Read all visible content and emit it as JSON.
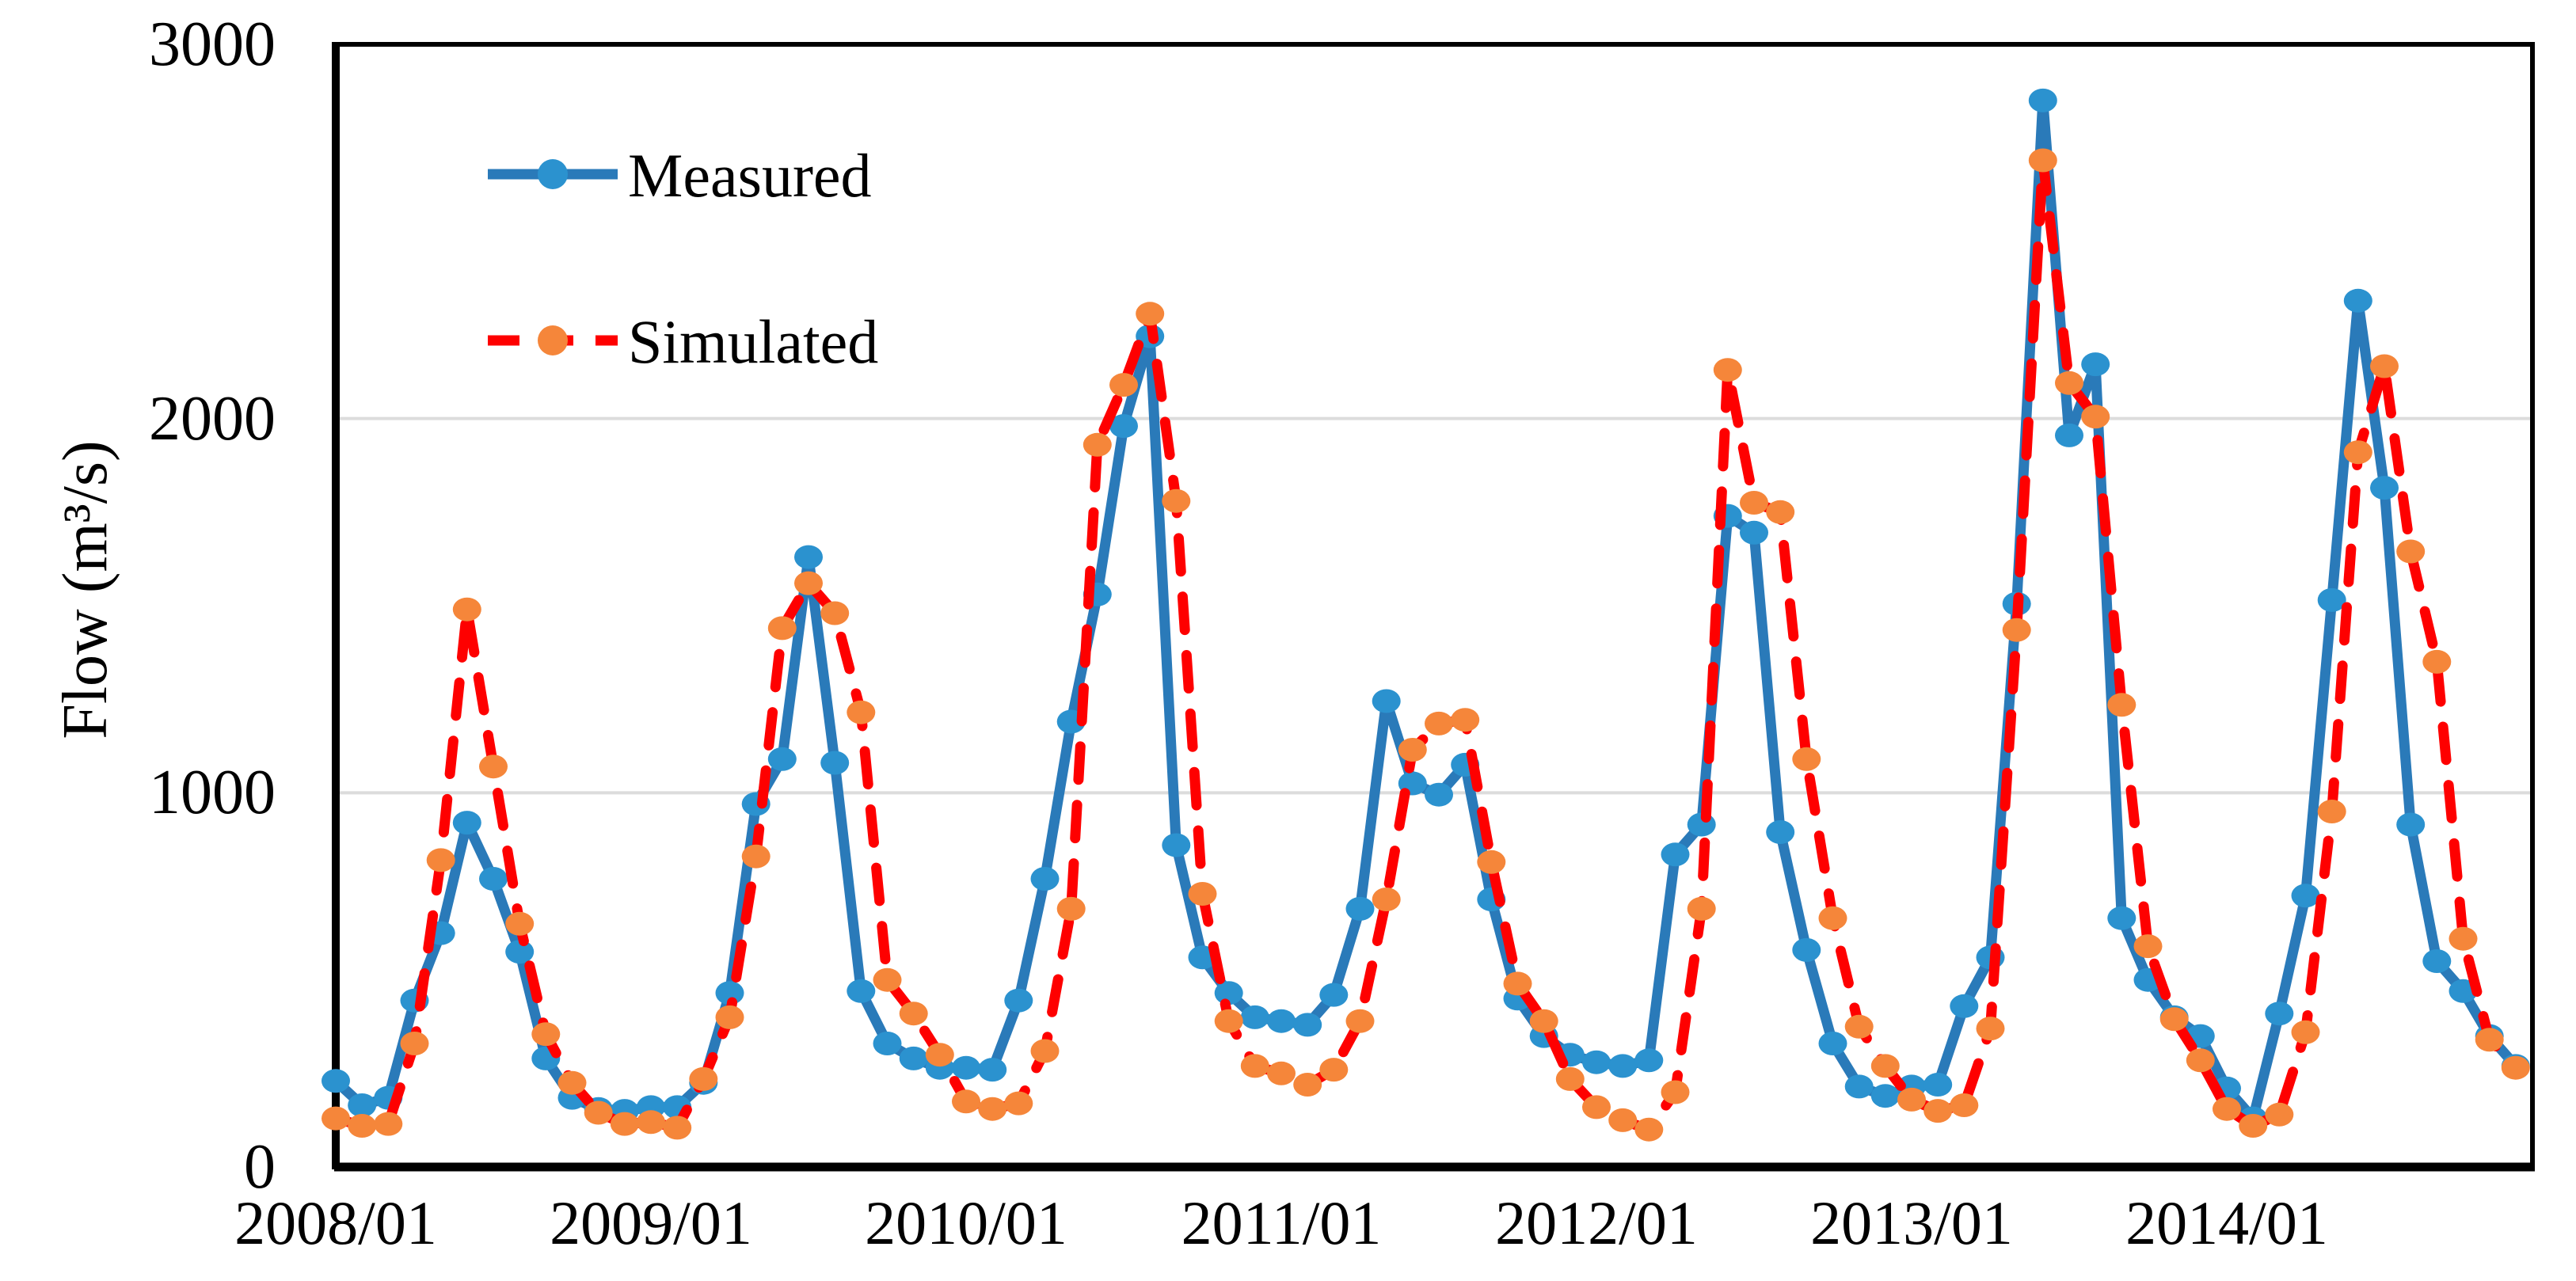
{
  "chart_data": {
    "type": "line",
    "title": "",
    "ylabel": "Flow (m³/s)",
    "ylim": [
      0,
      3000
    ],
    "yticks": [
      0,
      1000,
      2000,
      3000
    ],
    "ytick_labels": [
      "0",
      "1000",
      "2000",
      "3000"
    ],
    "x_start": "2008/01",
    "x_step_months": 1,
    "n_points": 84,
    "xtick_labels": [
      "2008/01",
      "2009/01",
      "2010/01",
      "2011/01",
      "2012/01",
      "2013/01",
      "2014/01"
    ],
    "xtick_month_index": [
      0,
      12,
      24,
      36,
      48,
      60,
      72
    ],
    "grid": "horizontal",
    "grid_color": "#DCDCDC",
    "axis_color": "#000000",
    "legend_position": "top-left-inside",
    "series": [
      {
        "name": "Measured",
        "line_style": "solid",
        "line_color": "#2A7AB9",
        "marker": "circle",
        "marker_color": "#2B92CF",
        "values": [
          230,
          165,
          185,
          445,
          625,
          920,
          770,
          575,
          290,
          185,
          155,
          150,
          160,
          160,
          225,
          465,
          970,
          1090,
          1630,
          1080,
          470,
          330,
          290,
          265,
          265,
          260,
          445,
          770,
          1190,
          1530,
          1980,
          2220,
          860,
          560,
          465,
          400,
          390,
          380,
          460,
          690,
          1245,
          1025,
          995,
          1075,
          715,
          450,
          350,
          300,
          280,
          270,
          285,
          835,
          915,
          1740,
          1695,
          895,
          580,
          330,
          215,
          190,
          215,
          220,
          430,
          560,
          1505,
          2850,
          1955,
          2145,
          665,
          500,
          400,
          350,
          210,
          130,
          410,
          725,
          1515,
          2315,
          1815,
          915,
          550,
          470,
          350,
          270
        ]
      },
      {
        "name": "Simulated",
        "line_style": "dashed",
        "line_color": "#FE0000",
        "marker": "circle",
        "marker_color": "#F5863A",
        "values": [
          130,
          110,
          115,
          330,
          820,
          1490,
          1070,
          650,
          355,
          225,
          145,
          115,
          120,
          105,
          235,
          400,
          830,
          1440,
          1560,
          1480,
          1215,
          500,
          410,
          300,
          175,
          155,
          170,
          310,
          690,
          1930,
          2090,
          2280,
          1780,
          730,
          390,
          270,
          250,
          220,
          260,
          390,
          715,
          1115,
          1185,
          1195,
          815,
          490,
          390,
          235,
          160,
          125,
          100,
          200,
          690,
          2130,
          1775,
          1750,
          1090,
          665,
          375,
          270,
          180,
          150,
          165,
          370,
          1435,
          2690,
          2095,
          2005,
          1235,
          590,
          395,
          285,
          155,
          110,
          140,
          360,
          950,
          1910,
          2140,
          1645,
          1350,
          610,
          340,
          265
        ]
      }
    ]
  }
}
